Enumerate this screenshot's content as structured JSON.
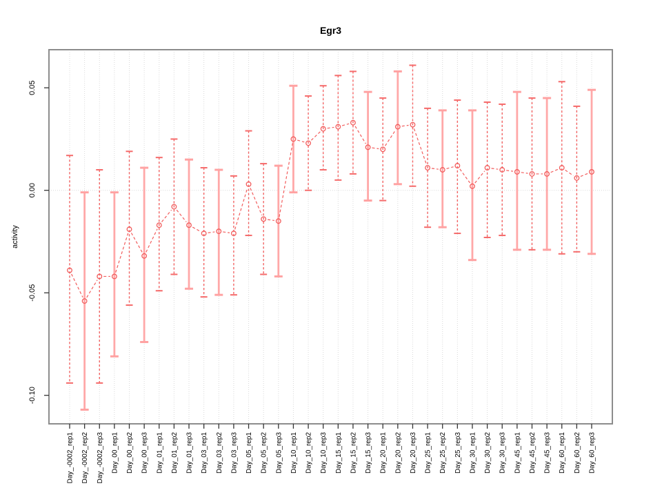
{
  "title": "Egr3",
  "ylabel": "activity",
  "colors": {
    "point": "#f25c5c",
    "join_line": "#f25c5c",
    "bar_dashed": "#f46262",
    "bar_solid": "#ffa8a8",
    "cap_dashed": "#f56a6a",
    "cap_solid": "#ffa2a2",
    "grid": "#d8d8d8",
    "frame": "#8c8c8c",
    "tick": "#333333",
    "text": "#000000"
  },
  "chart_data": {
    "type": "line",
    "title": "Egr3",
    "xlabel": "",
    "ylabel": "activity",
    "ylim": [
      -0.112,
      0.066
    ],
    "yticks": [
      0.05,
      0.0,
      -0.05,
      -0.1
    ],
    "ytick_labels": [
      "0.05",
      "0.00",
      "-0.05",
      "-0.10"
    ],
    "grid": "vertical dotted gridline at every category; dotted horizontal line at y=0",
    "legend": "none",
    "marker": "open-circle",
    "categories": [
      "Day_-0002_rep1",
      "Day_-0002_rep2",
      "Day_-0002_rep3",
      "Day_00_rep1",
      "Day_00_rep2",
      "Day_00_rep3",
      "Day_01_rep1",
      "Day_01_rep2",
      "Day_01_rep3",
      "Day_03_rep1",
      "Day_03_rep2",
      "Day_03_rep3",
      "Day_05_rep1",
      "Day_05_rep2",
      "Day_05_rep3",
      "Day_10_rep1",
      "Day_10_rep2",
      "Day_10_rep3",
      "Day_15_rep1",
      "Day_15_rep2",
      "Day_15_rep3",
      "Day_20_rep1",
      "Day_20_rep2",
      "Day_20_rep3",
      "Day_25_rep1",
      "Day_25_rep2",
      "Day_25_rep3",
      "Day_30_rep1",
      "Day_30_rep2",
      "Day_30_rep3",
      "Day_45_rep1",
      "Day_45_rep2",
      "Day_45_rep3",
      "Day_60_rep1",
      "Day_60_rep2",
      "Day_60_rep3"
    ],
    "series": [
      {
        "name": "activity",
        "values": [
          -0.039,
          -0.054,
          -0.042,
          -0.042,
          -0.019,
          -0.032,
          -0.017,
          -0.008,
          -0.017,
          -0.021,
          -0.02,
          -0.021,
          0.003,
          -0.014,
          -0.015,
          0.025,
          0.023,
          0.03,
          0.031,
          0.033,
          0.021,
          0.02,
          0.031,
          0.032,
          0.011,
          0.01,
          0.012,
          0.002,
          0.011,
          0.01,
          0.009,
          0.008,
          0.008,
          0.011,
          0.006,
          0.009
        ],
        "error_low": [
          -0.094,
          -0.107,
          -0.094,
          -0.081,
          -0.056,
          -0.074,
          -0.049,
          -0.041,
          -0.048,
          -0.052,
          -0.051,
          -0.051,
          -0.022,
          -0.041,
          -0.042,
          -0.001,
          0.0,
          0.01,
          0.005,
          0.008,
          -0.005,
          -0.005,
          0.003,
          0.002,
          -0.018,
          -0.018,
          -0.021,
          -0.034,
          -0.023,
          -0.022,
          -0.029,
          -0.029,
          -0.029,
          -0.031,
          -0.03,
          -0.031
        ],
        "error_high": [
          0.017,
          -0.001,
          0.01,
          -0.001,
          0.019,
          0.011,
          0.016,
          0.025,
          0.015,
          0.011,
          0.01,
          0.007,
          0.029,
          0.013,
          0.012,
          0.051,
          0.046,
          0.051,
          0.056,
          0.058,
          0.048,
          0.045,
          0.058,
          0.061,
          0.04,
          0.039,
          0.044,
          0.039,
          0.043,
          0.042,
          0.048,
          0.045,
          0.045,
          0.053,
          0.041,
          0.049
        ],
        "bar_styles": [
          "dashed",
          "solid",
          "dashed",
          "solid",
          "dashed",
          "solid",
          "dashed",
          "dashed",
          "solid",
          "dashed",
          "solid",
          "dashed",
          "dashed",
          "dashed",
          "solid",
          "solid",
          "dashed",
          "dashed",
          "dashed",
          "dashed",
          "solid",
          "dashed",
          "solid",
          "dashed",
          "dashed",
          "solid",
          "dashed",
          "solid",
          "dashed",
          "dashed",
          "solid",
          "dashed",
          "solid",
          "dashed",
          "dashed",
          "solid"
        ]
      }
    ]
  }
}
